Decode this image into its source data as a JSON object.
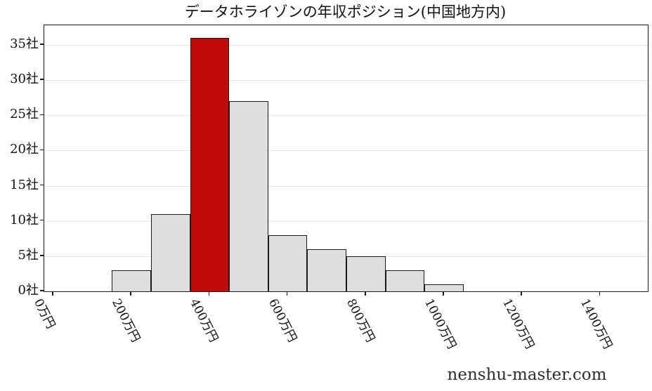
{
  "title": "データホライゾンの年収ポジション(中国地方内)",
  "watermark": "nenshu-master.com",
  "colors": {
    "bar_fill": "#dcdee0",
    "bar_highlight": "#c00a0a",
    "bar_edge": "#1a1a1a",
    "gridline": "#e4e4e4",
    "axis": "#1a1a1a",
    "text": "#111111"
  },
  "chart_data": {
    "type": "bar",
    "title": "データホライゾンの年収ポジション(中国地方内)",
    "xlabel": "",
    "ylabel": "",
    "unit_x": "万円",
    "unit_y": "社",
    "bin_width": 100,
    "categories": [
      200,
      300,
      400,
      500,
      600,
      700,
      800,
      900,
      1000
    ],
    "values": [
      3,
      11,
      36,
      27,
      8,
      6,
      5,
      3,
      1
    ],
    "highlight_index": 2,
    "highlight_category": 400,
    "x_ticks": [
      {
        "value": 0,
        "label": "0万円"
      },
      {
        "value": 200,
        "label": "200万円"
      },
      {
        "value": 400,
        "label": "400万円"
      },
      {
        "value": 600,
        "label": "600万円"
      },
      {
        "value": 800,
        "label": "800万円"
      },
      {
        "value": 1000,
        "label": "1000万円"
      },
      {
        "value": 1200,
        "label": "1200万円"
      },
      {
        "value": 1400,
        "label": "1400万円"
      }
    ],
    "y_ticks": [
      {
        "value": 0,
        "label": "0社"
      },
      {
        "value": 5,
        "label": "5社"
      },
      {
        "value": 10,
        "label": "10社"
      },
      {
        "value": 15,
        "label": "15社"
      },
      {
        "value": 20,
        "label": "20社"
      },
      {
        "value": 25,
        "label": "25社"
      },
      {
        "value": 30,
        "label": "30社"
      },
      {
        "value": 35,
        "label": "35社"
      }
    ],
    "xlim": [
      -23,
      1522
    ],
    "ylim": [
      0,
      37.8
    ],
    "grid": "horizontal-only",
    "legend": "none"
  }
}
